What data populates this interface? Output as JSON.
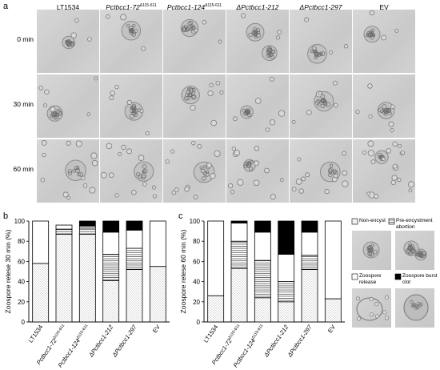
{
  "panel_a": {
    "letter": "a",
    "columns": [
      {
        "text": "LT1534",
        "italic": false,
        "sup": ""
      },
      {
        "text": "Pctbcc1-72",
        "italic": true,
        "sup": "Δ115-611"
      },
      {
        "text": "Pctbcc1-124",
        "italic": true,
        "sup": "Δ115-611"
      },
      {
        "text": "ΔPctbcc1-212",
        "italic": true,
        "sup": ""
      },
      {
        "text": "ΔPctbcc1-297",
        "italic": true,
        "sup": ""
      },
      {
        "text": "EV",
        "italic": false,
        "sup": ""
      }
    ],
    "rows": [
      "0 min",
      "30 min",
      "60 min"
    ]
  },
  "panel_b": {
    "letter": "b",
    "ylabel": "Zoospore relese 30 min  (%)"
  },
  "panel_c": {
    "letter": "c",
    "ylabel": "Zoospore relese 60 min  (%)"
  },
  "legend": {
    "non_encyst": "Non-encyst",
    "pre_encystment": "Pre-encystment abortion",
    "zoospore_release": "Zoospore release",
    "zoospore_burst": "Zoospore burst clot"
  },
  "colors": {
    "release": "#ffffff",
    "burst": "#000000",
    "grid_pattern": "#888888"
  },
  "chart_data": [
    {
      "type": "bar",
      "stacked": true,
      "ylabel": "Zoospore relese 30 min  (%)",
      "ylim": [
        0,
        100
      ],
      "yticks": [
        0,
        20,
        40,
        60,
        80,
        100
      ],
      "categories": [
        "LT1534",
        "Pctbcc1-72Δ115-611",
        "Pctbcc1-124Δ115-611",
        "ΔPctbcc1-212",
        "ΔPctbcc1-297",
        "EV"
      ],
      "series": [
        {
          "name": "Non-encyst",
          "values": [
            58,
            87,
            87,
            41,
            52,
            55
          ]
        },
        {
          "name": "Pre-encystment abortion",
          "values": [
            0,
            5,
            6,
            26,
            21,
            0
          ]
        },
        {
          "name": "Zoospore release",
          "values": [
            42,
            4,
            2,
            22,
            18,
            45
          ]
        },
        {
          "name": "Zoospore burst clot",
          "values": [
            0,
            0,
            5,
            11,
            9,
            0
          ]
        }
      ]
    },
    {
      "type": "bar",
      "stacked": true,
      "ylabel": "Zoospore relese 60 min  (%)",
      "ylim": [
        0,
        100
      ],
      "yticks": [
        0,
        20,
        40,
        60,
        80,
        100
      ],
      "categories": [
        "LT1534",
        "Pctbcc1-72Δ115-611",
        "Pctbcc1-124Δ115-611",
        "ΔPctbcc1-212",
        "ΔPctbcc1-297",
        "EV"
      ],
      "series": [
        {
          "name": "Non-encyst",
          "values": [
            26,
            53,
            24,
            20,
            52,
            23
          ]
        },
        {
          "name": "Pre-encystment abortion",
          "values": [
            0,
            27,
            37,
            20,
            14,
            0
          ]
        },
        {
          "name": "Zoospore release",
          "values": [
            74,
            18,
            28,
            27,
            23,
            77
          ]
        },
        {
          "name": "Zoospore burst clot",
          "values": [
            0,
            2,
            11,
            33,
            11,
            0
          ]
        }
      ]
    }
  ]
}
